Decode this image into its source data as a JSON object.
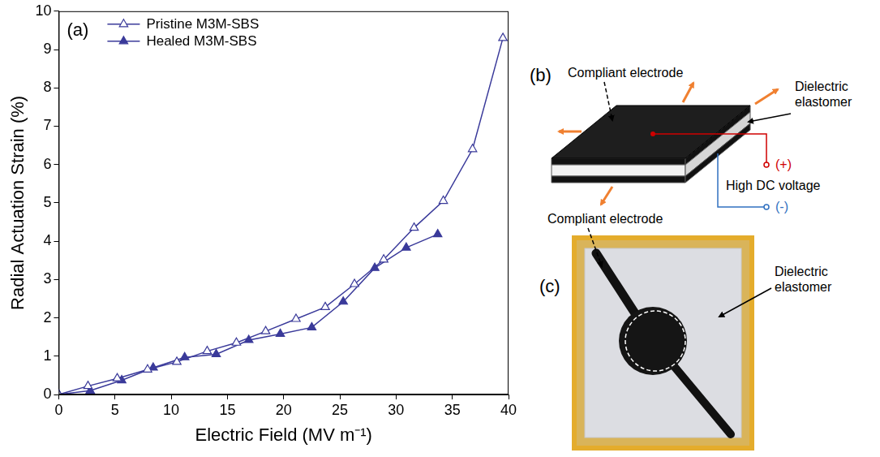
{
  "chart_data": {
    "type": "line",
    "panel_label": "(a)",
    "x_label": "Electric Field (MV m⁻¹)",
    "y_label": "Radial Actuation Strain (%)",
    "xlim": [
      0,
      40
    ],
    "xticks": [
      0,
      5,
      10,
      15,
      20,
      25,
      30,
      35,
      40
    ],
    "ylim": [
      0,
      10
    ],
    "yticks": [
      0,
      1,
      2,
      3,
      4,
      5,
      6,
      7,
      8,
      9,
      10
    ],
    "grid": false,
    "legend": "upper left",
    "series": [
      {
        "name": "Pristine M3M-SBS",
        "color": "#3a3a9a",
        "marker": "open triangle",
        "x": [
          0,
          2.6,
          5.2,
          7.9,
          10.5,
          13.2,
          15.8,
          18.4,
          21.1,
          23.7,
          26.3,
          28.9,
          31.6,
          34.2,
          36.8,
          39.5
        ],
        "values": [
          0,
          0.22,
          0.42,
          0.65,
          0.85,
          1.13,
          1.35,
          1.65,
          1.97,
          2.28,
          2.88,
          3.52,
          4.35,
          5.05,
          6.4,
          9.3
        ]
      },
      {
        "name": "Healed M3M-SBS",
        "color": "#3a3a9a",
        "marker": "filled triangle",
        "x": [
          0,
          2.8,
          5.6,
          8.4,
          11.2,
          14.0,
          16.9,
          19.7,
          22.5,
          25.3,
          28.1,
          30.9,
          33.7
        ],
        "values": [
          0,
          0.1,
          0.37,
          0.7,
          0.97,
          1.05,
          1.42,
          1.58,
          1.75,
          2.42,
          3.3,
          3.83,
          4.18
        ]
      }
    ]
  },
  "diagram_b": {
    "panel_label": "(b)",
    "electrode_label": "Compliant electrode",
    "dielectric_label": "Dielectric elastomer",
    "positive_terminal": "(+)",
    "voltage_label": "High DC voltage",
    "negative_terminal": "(-)"
  },
  "photo_c": {
    "panel_label": "(c)",
    "electrode_label": "Compliant electrode",
    "dielectric_label": "Dielectric elastomer"
  }
}
